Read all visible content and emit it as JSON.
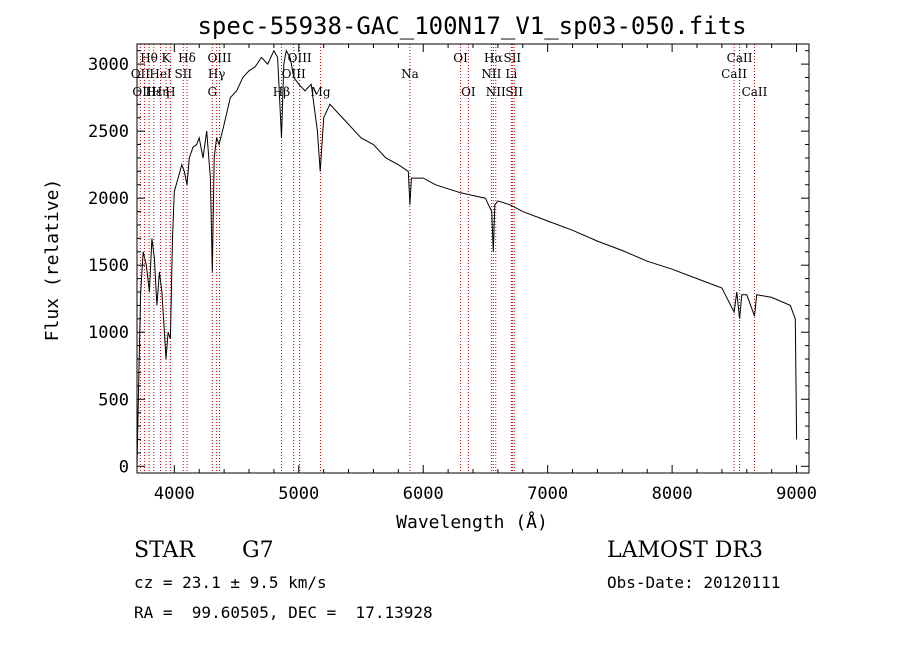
{
  "chart_data": {
    "type": "line",
    "title": "spec-55938-GAC_100N17_V1_sp03-050.fits",
    "xlabel": "Wavelength (Å)",
    "ylabel": "Flux (relative)",
    "xlim": [
      3700,
      9100
    ],
    "ylim": [
      -50,
      3150
    ],
    "xticks": [
      4000,
      5000,
      6000,
      7000,
      8000,
      9000
    ],
    "yticks": [
      0,
      500,
      1000,
      1500,
      2000,
      2500,
      3000
    ],
    "grid": false,
    "legend": "none",
    "series": [
      {
        "name": "spectrum",
        "x": [
          3700,
          3715,
          3730,
          3750,
          3775,
          3800,
          3820,
          3840,
          3860,
          3880,
          3900,
          3920,
          3933,
          3950,
          3968,
          3985,
          4000,
          4030,
          4060,
          4080,
          4102,
          4120,
          4150,
          4180,
          4200,
          4230,
          4260,
          4290,
          4305,
          4320,
          4340,
          4360,
          4400,
          4450,
          4500,
          4550,
          4600,
          4650,
          4700,
          4750,
          4800,
          4830,
          4861,
          4880,
          4900,
          4930,
          4960,
          5000,
          5050,
          5100,
          5150,
          5172,
          5200,
          5250,
          5300,
          5400,
          5500,
          5600,
          5700,
          5800,
          5880,
          5893,
          5905,
          6000,
          6100,
          6200,
          6300,
          6400,
          6500,
          6550,
          6563,
          6575,
          6600,
          6700,
          6800,
          7000,
          7200,
          7400,
          7600,
          7800,
          8000,
          8200,
          8400,
          8498,
          8520,
          8542,
          8560,
          8600,
          8662,
          8680,
          8800,
          8950,
          8990,
          9000
        ],
        "y": [
          0,
          700,
          1300,
          1600,
          1500,
          1300,
          1700,
          1550,
          1200,
          1450,
          1300,
          1000,
          800,
          1000,
          950,
          1700,
          2050,
          2150,
          2250,
          2200,
          2100,
          2300,
          2380,
          2400,
          2450,
          2300,
          2500,
          2150,
          1450,
          2300,
          2450,
          2400,
          2550,
          2750,
          2800,
          2900,
          2950,
          2980,
          3050,
          3000,
          3100,
          3050,
          2450,
          3000,
          3100,
          3050,
          2900,
          2850,
          2800,
          2850,
          2500,
          2200,
          2600,
          2700,
          2650,
          2550,
          2450,
          2400,
          2300,
          2250,
          2200,
          1950,
          2150,
          2150,
          2100,
          2070,
          2040,
          2020,
          2000,
          1900,
          1600,
          1950,
          1980,
          1950,
          1900,
          1830,
          1760,
          1680,
          1610,
          1530,
          1470,
          1400,
          1330,
          1150,
          1300,
          1100,
          1280,
          1280,
          1120,
          1280,
          1260,
          1200,
          1100,
          200
        ]
      }
    ],
    "lines": [
      {
        "label": "Hθ",
        "x": 3797,
        "row": 1
      },
      {
        "label": "OII",
        "x": 3727,
        "row": 2
      },
      {
        "label": "OIII",
        "x": 3760,
        "row": 3
      },
      {
        "label": "Hε",
        "x": 3835,
        "row": 3
      },
      {
        "label": "HeI",
        "x": 3889,
        "row": 2
      },
      {
        "label": "K",
        "x": 3933,
        "row": 1
      },
      {
        "label": "Hη",
        "x": 3889,
        "row": 3
      },
      {
        "label": "SII",
        "x": 4072,
        "row": 2
      },
      {
        "label": "H",
        "x": 3968,
        "row": 3
      },
      {
        "label": "Hδ",
        "x": 4102,
        "row": 1
      },
      {
        "label": "OIII",
        "x": 4363,
        "row": 1
      },
      {
        "label": "Hγ",
        "x": 4340,
        "row": 2
      },
      {
        "label": "G",
        "x": 4305,
        "row": 3
      },
      {
        "label": "Hβ",
        "x": 4861,
        "row": 3
      },
      {
        "label": "OIII",
        "x": 5007,
        "row": 1
      },
      {
        "label": "OIII",
        "x": 4959,
        "row": 2
      },
      {
        "label": "Mg",
        "x": 5175,
        "row": 3
      },
      {
        "label": "Na",
        "x": 5893,
        "row": 2
      },
      {
        "label": "OI",
        "x": 6300,
        "row": 1
      },
      {
        "label": "OI",
        "x": 6363,
        "row": 3
      },
      {
        "label": "Hα",
        "x": 6563,
        "row": 1
      },
      {
        "label": "NII",
        "x": 6548,
        "row": 2
      },
      {
        "label": "NII",
        "x": 6583,
        "row": 3
      },
      {
        "label": "SII",
        "x": 6716,
        "row": 1
      },
      {
        "label": "Li",
        "x": 6708,
        "row": 2
      },
      {
        "label": "SII",
        "x": 6731,
        "row": 3
      },
      {
        "label": "CaII",
        "x": 8542,
        "row": 1
      },
      {
        "label": "CaII",
        "x": 8498,
        "row": 2
      },
      {
        "label": "CaII",
        "x": 8662,
        "row": 3
      }
    ]
  },
  "footer": {
    "object_class": "STAR",
    "subclass": "G7",
    "survey": "LAMOST DR3",
    "cz": "cz = 23.1 ± 9.5 km/s",
    "obs_date": "Obs-Date: 20120111",
    "coords": "RA =  99.60505, DEC =  17.13928"
  },
  "colors": {
    "line_marker": "#cc0000",
    "spectrum": "#000000"
  }
}
